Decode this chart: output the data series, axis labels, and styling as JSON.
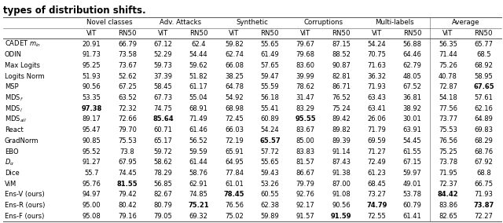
{
  "title_text": "types of distribution shifts.",
  "display_values": [
    [
      "20.91",
      "66.79",
      "67.12",
      "62.4",
      "59.82",
      "55.65",
      "79.67",
      "87.15",
      "54.24",
      "56.88",
      "56.35",
      "65.77"
    ],
    [
      "91.73",
      "73.58",
      "52.29",
      "54.44",
      "62.74",
      "61.49",
      "79.68",
      "88.52",
      "70.75",
      "64.46",
      "71.44",
      "68.5"
    ],
    [
      "95.25",
      "73.67",
      "59.73",
      "59.62",
      "66.08",
      "57.65",
      "83.60",
      "90.87",
      "71.63",
      "62.79",
      "75.26",
      "68.92"
    ],
    [
      "51.93",
      "52.62",
      "37.39",
      "51.82",
      "38.25",
      "59.47",
      "39.99",
      "82.81",
      "36.32",
      "48.05",
      "40.78",
      "58.95"
    ],
    [
      "90.56",
      "67.25",
      "58.45",
      "61.17",
      "64.78",
      "55.59",
      "78.62",
      "86.71",
      "71.93",
      "67.52",
      "72.87",
      "67.65"
    ],
    [
      "53.35",
      "63.52",
      "67.73",
      "55.04",
      "54.92",
      "56.18",
      "31.47",
      "76.52",
      "63.43",
      "36.81",
      "54.18",
      "57.61"
    ],
    [
      "97.38",
      "72.32",
      "74.75",
      "68.91",
      "68.98",
      "55.41",
      "83.29",
      "75.24",
      "63.41",
      "38.92",
      "77.56",
      "62.16"
    ],
    [
      "89.17",
      "72.66",
      "85.64",
      "71.49",
      "72.45",
      "60.89",
      "95.55",
      "89.42",
      "26.06",
      "30.01",
      "73.77",
      "64.89"
    ],
    [
      "95.47",
      "79.70",
      "60.71",
      "61.46",
      "66.03",
      "54.24",
      "83.67",
      "89.82",
      "71.79",
      "63.91",
      "75.53",
      "69.83"
    ],
    [
      "90.85",
      "75.53",
      "65.17",
      "56.52",
      "72.19",
      "65.57",
      "85.00",
      "89.39",
      "69.59",
      "54.45",
      "76.56",
      "68.29"
    ],
    [
      "95.52",
      "73.8",
      "59.72",
      "59.59",
      "65.91",
      "57.72",
      "83.83",
      "91.14",
      "71.27",
      "61.55",
      "75.25",
      "68.76"
    ],
    [
      "91.27",
      "67.95",
      "58.62",
      "61.44",
      "64.95",
      "55.65",
      "81.57",
      "87.43",
      "72.49",
      "67.15",
      "73.78",
      "67.92"
    ],
    [
      "55.7",
      "74.45",
      "78.29",
      "58.76",
      "77.84",
      "59.43",
      "86.67",
      "91.38",
      "61.23",
      "59.97",
      "71.95",
      "68.8"
    ],
    [
      "95.76",
      "81.55",
      "56.85",
      "62.91",
      "61.01",
      "53.26",
      "79.79",
      "87.00",
      "68.45",
      "49.01",
      "72.37",
      "66.75"
    ],
    [
      "94.97",
      "79.42",
      "82.67",
      "74.85",
      "78.45",
      "60.55",
      "92.76",
      "91.08",
      "73.27",
      "53.78",
      "84.42",
      "71.93"
    ],
    [
      "95.00",
      "80.42",
      "80.79",
      "75.21",
      "76.56",
      "62.38",
      "92.17",
      "90.56",
      "74.79",
      "60.79",
      "83.86",
      "73.87"
    ],
    [
      "95.08",
      "79.16",
      "79.05",
      "69.32",
      "75.02",
      "59.89",
      "91.57",
      "91.59",
      "72.55",
      "61.41",
      "82.65",
      "72.27"
    ]
  ],
  "bold_cells": {
    "4": [
      11
    ],
    "6": [
      0
    ],
    "7": [
      2,
      6
    ],
    "9": [
      5
    ],
    "13": [
      1
    ],
    "14": [
      4,
      10
    ],
    "15": [
      3,
      8,
      11
    ],
    "16": [
      7
    ]
  },
  "row_names": [
    "CADET $m_{in}$",
    "ODIN",
    "Max Logits",
    "Logits Norm",
    "MSP",
    "MDS$_f$",
    "MDS$_l$",
    "MDS$_{all}$",
    "React",
    "GradNorm",
    "EBO",
    "$D_{\\alpha}$",
    "Dice",
    "ViM",
    "Ens-V (ours)",
    "Ens-R (ours)",
    "Ens-F (ours)"
  ],
  "group_headers": [
    "Novel classes",
    "Adv. Attacks",
    "Synthetic",
    "Corruptions",
    "Multi-labels",
    "Average"
  ],
  "sub_headers": [
    "ViT",
    "RN50"
  ],
  "fontsize": 6.0,
  "header_fontsize": 6.2,
  "title_fontsize": 8.5
}
